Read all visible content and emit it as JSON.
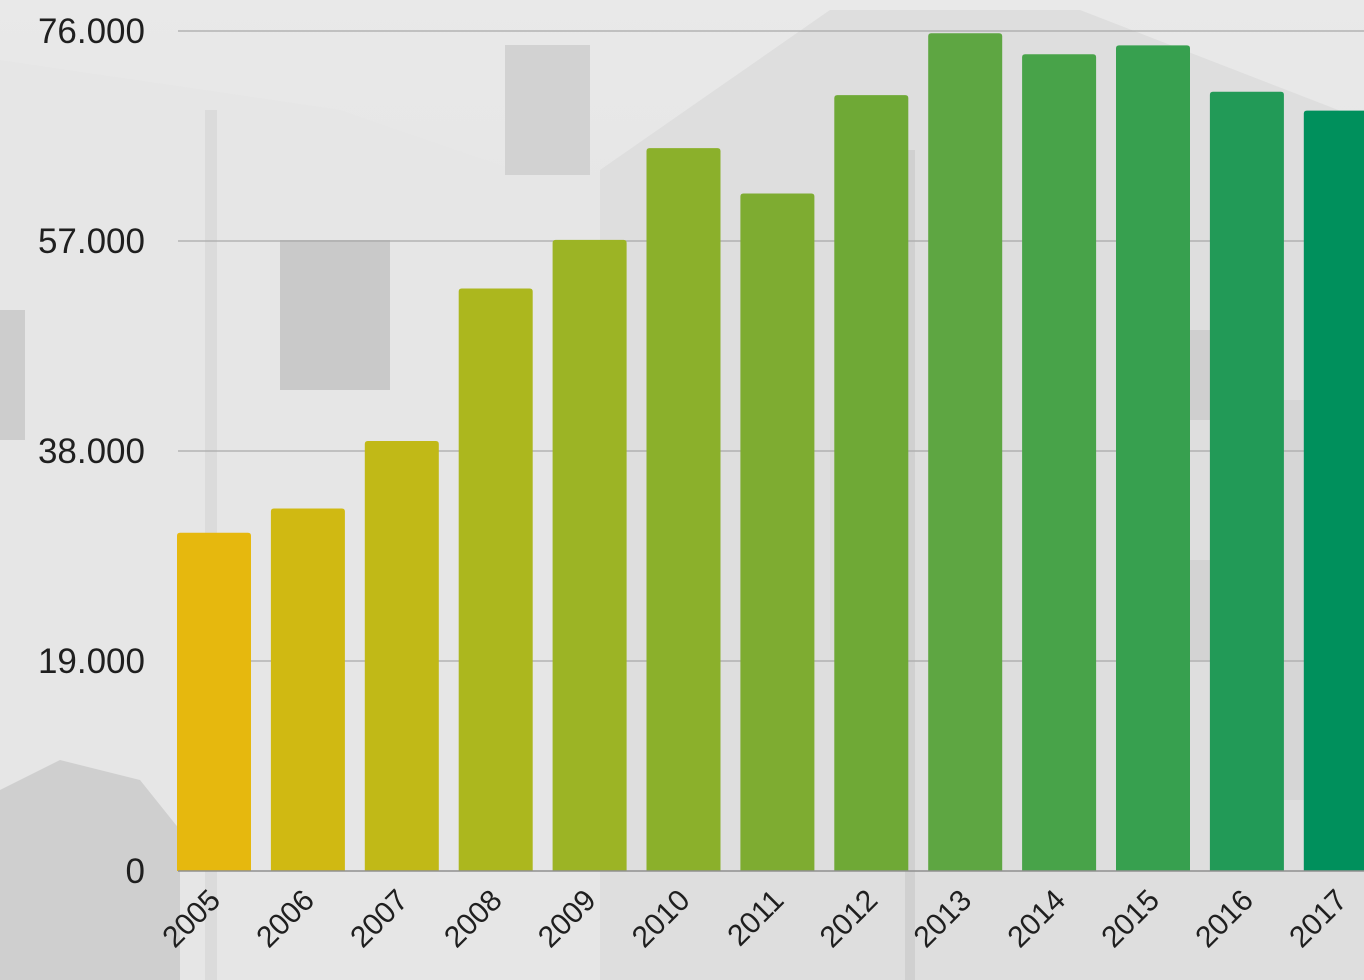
{
  "chart_data": {
    "type": "bar",
    "title": "",
    "xlabel": "",
    "ylabel": "",
    "categories": [
      "2005",
      "2006",
      "2007",
      "2008",
      "2009",
      "2010",
      "2011",
      "2012",
      "2013",
      "2014",
      "2015",
      "2016",
      "2017"
    ],
    "values": [
      30600,
      32800,
      38900,
      52700,
      57100,
      65400,
      61300,
      70200,
      75800,
      73900,
      74700,
      70500,
      68800
    ],
    "ylim": [
      0,
      76000
    ],
    "yticks": [
      0,
      19000,
      38000,
      57000,
      76000
    ],
    "ytick_labels": [
      "0",
      "19.000",
      "38.000",
      "57.000",
      "76.000"
    ],
    "grid": true,
    "legend": "none",
    "bar_colors": [
      "#e6b80e",
      "#d0b912",
      "#c1b917",
      "#acb71e",
      "#9cb425",
      "#8bb02b",
      "#7eac31",
      "#6fa936",
      "#5ea642",
      "#48a349",
      "#37a04f",
      "#229a57",
      "#00905c"
    ]
  }
}
